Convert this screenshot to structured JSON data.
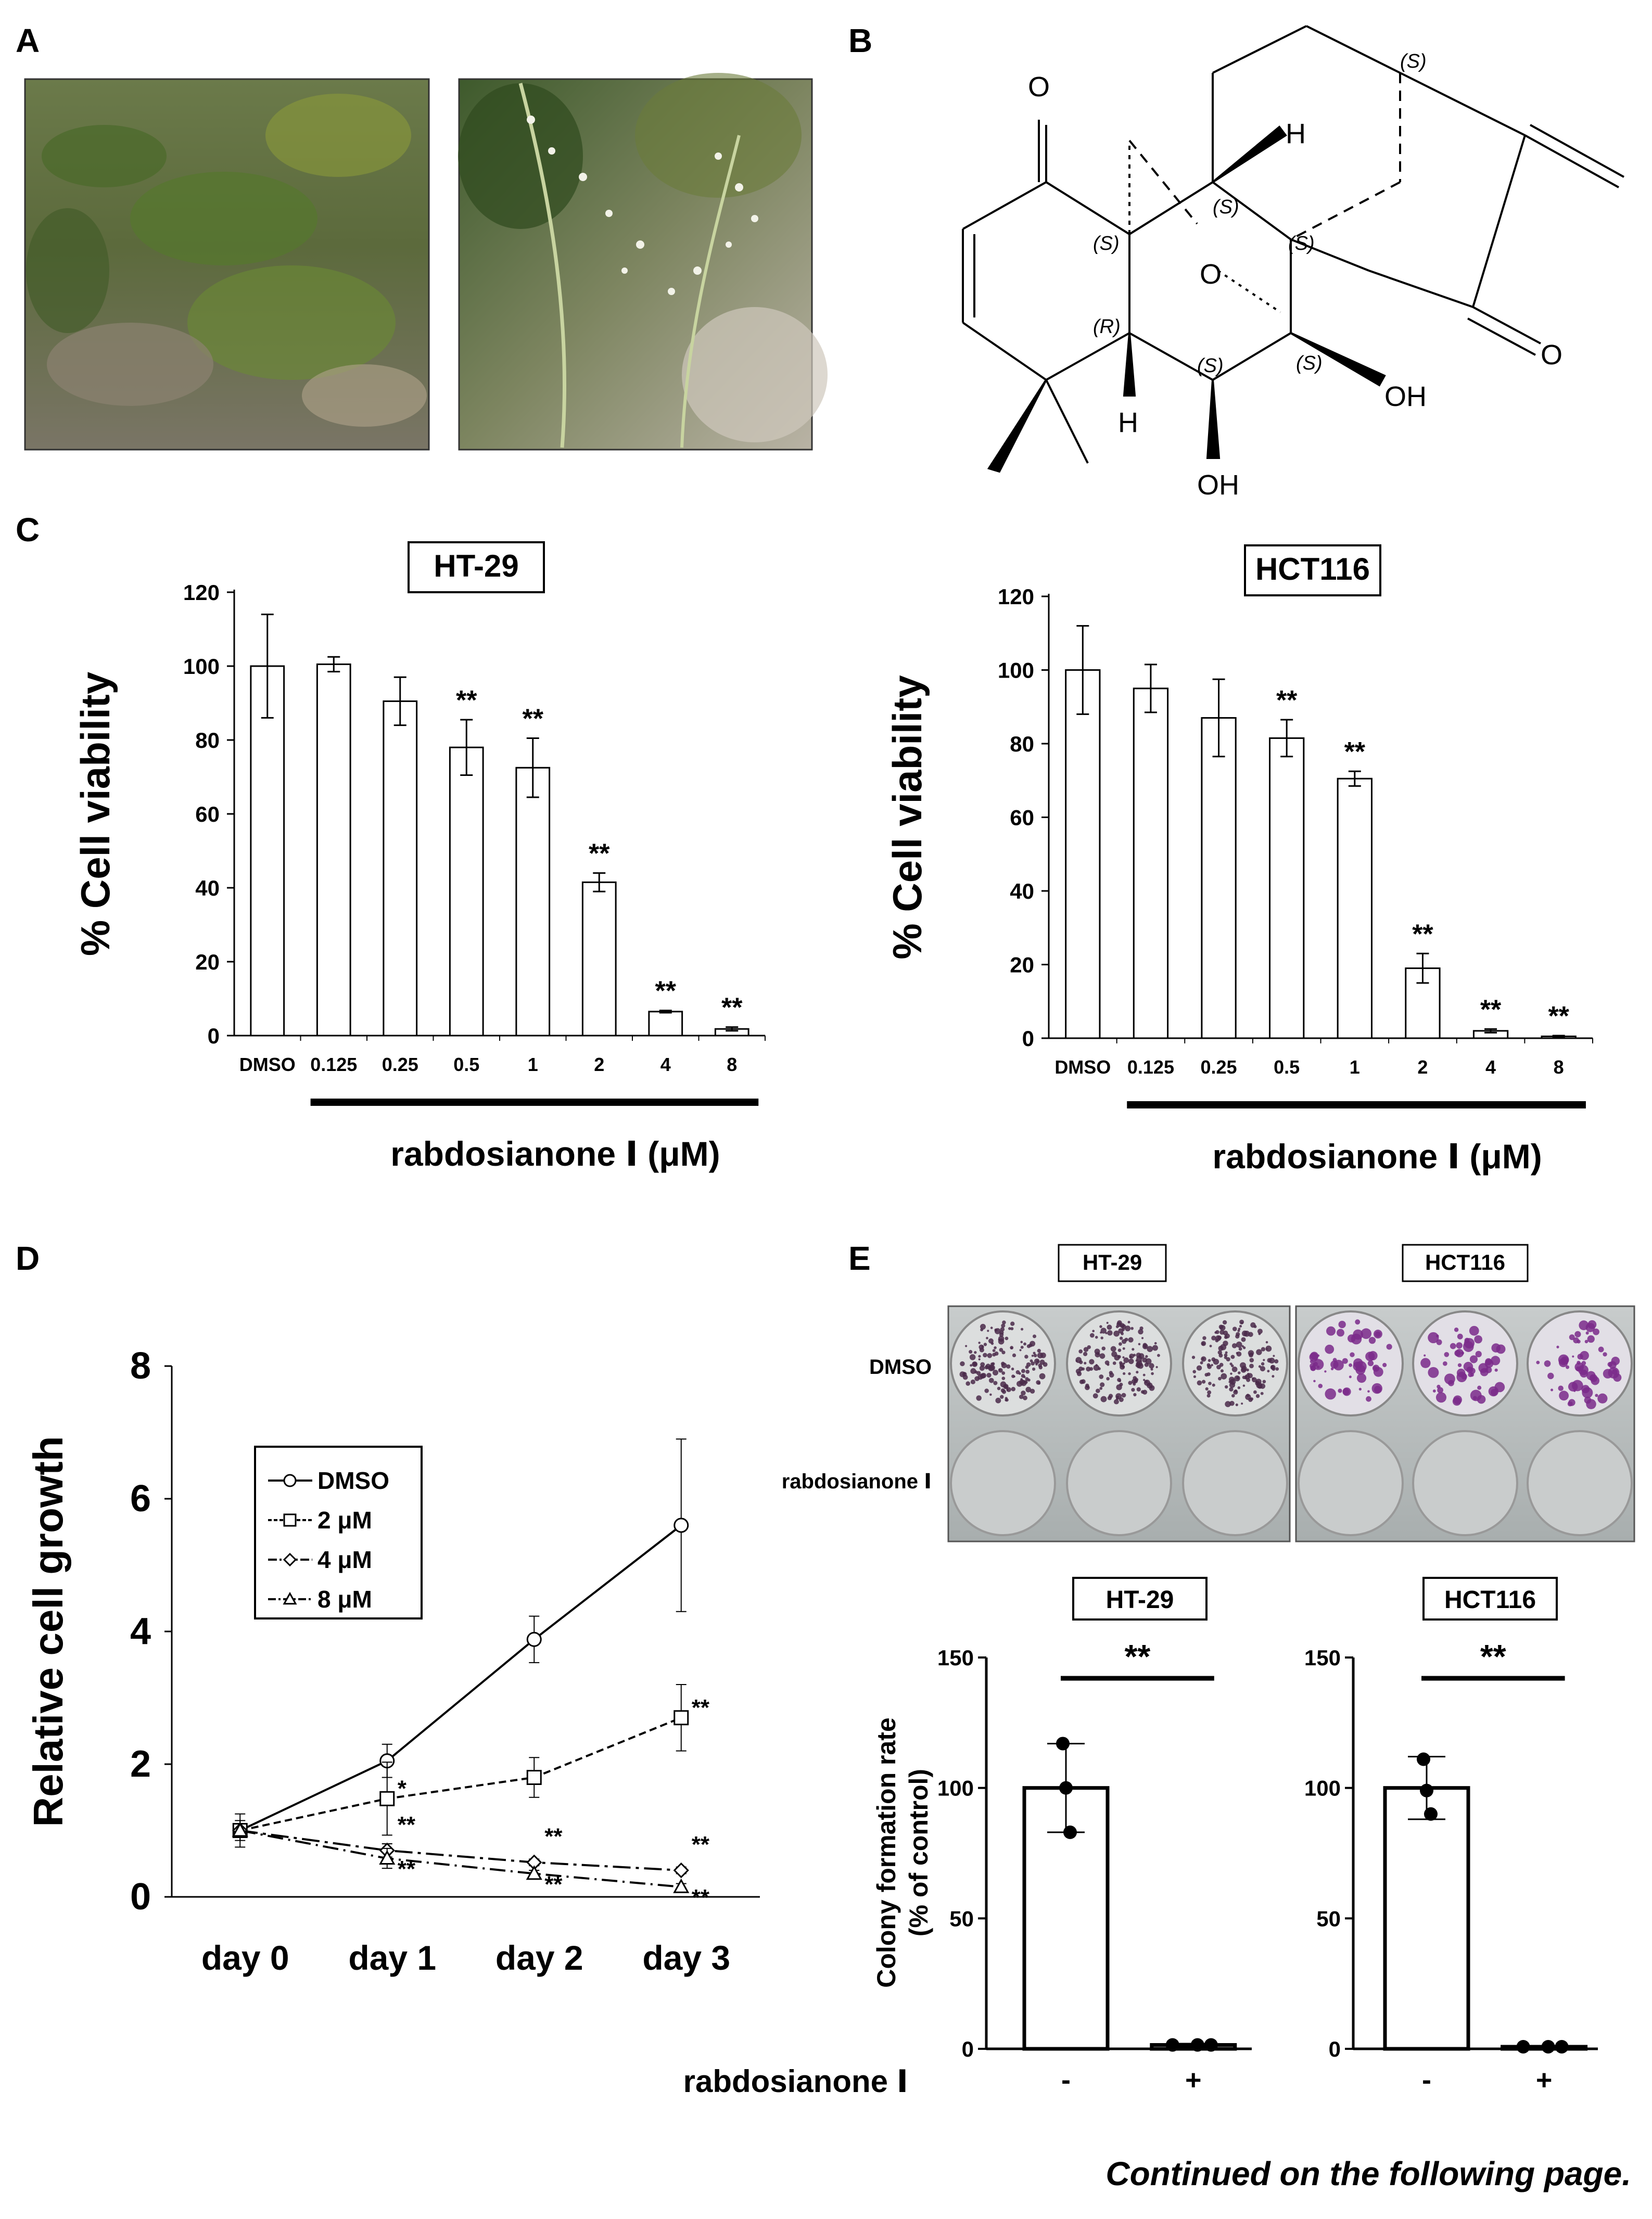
{
  "panels": {
    "A": {
      "letter": "A"
    },
    "B": {
      "letter": "B",
      "atoms": {
        "o_ketone": "O",
        "o_ketone2": "O",
        "o_bridge": "O",
        "h_top": "H",
        "h_bottom": "H",
        "oh_right": "OH",
        "oh_bottom": "OH"
      },
      "stereo": [
        "(S)",
        "(S)",
        "(S)",
        "(S)",
        "(R)",
        "(S)",
        "(S)"
      ]
    },
    "C": {
      "letter": "C",
      "ylabel": "% Cell viability",
      "xlabel": "rabdosianone Ⅰ (μM)",
      "charts": [
        "HT-29",
        "HCT116"
      ]
    },
    "D": {
      "letter": "D",
      "ylabel": "Relative cell growth"
    },
    "E": {
      "letter": "E",
      "photo_titles": [
        "HT-29",
        "HCT116"
      ],
      "row_labels": [
        "DMSO",
        "rabdosianone Ⅰ"
      ],
      "ylabel_line1": "Colony formation rate",
      "ylabel_line2": "(% of control)",
      "treatment_label": "rabdosianone Ⅰ",
      "treatment_ticks": [
        "-",
        "+"
      ]
    }
  },
  "footer": "Continued on the following page.",
  "colors": {
    "bar_fill": "#ffffff",
    "stroke": "#000000",
    "stain": "#7a2a8a"
  },
  "chart_data": [
    {
      "id": "C-HT29",
      "type": "bar",
      "title": "HT-29",
      "categories": [
        "DMSO",
        "0.125",
        "0.25",
        "0.5",
        "1",
        "2",
        "4",
        "8"
      ],
      "values": [
        100,
        100.5,
        90.5,
        78,
        72.5,
        41.5,
        6.5,
        1.8
      ],
      "errors": [
        14,
        2,
        6.5,
        7.5,
        8,
        2.5,
        0.3,
        0.5
      ],
      "significance": [
        "",
        "",
        "",
        "**",
        "**",
        "**",
        "**",
        "**"
      ],
      "yticks": [
        "0",
        "20",
        "40",
        "60",
        "80",
        "100",
        "120"
      ],
      "ylim": [
        0,
        120
      ],
      "ylabel": "% Cell viability",
      "xlabel": "rabdosianone Ⅰ (μM)"
    },
    {
      "id": "C-HCT116",
      "type": "bar",
      "title": "HCT116",
      "categories": [
        "DMSO",
        "0.125",
        "0.25",
        "0.5",
        "1",
        "2",
        "4",
        "8"
      ],
      "values": [
        100,
        95,
        87,
        81.5,
        70.5,
        19,
        2,
        0.5
      ],
      "errors": [
        12,
        6.5,
        10.5,
        5,
        2,
        4,
        0.5,
        0.2
      ],
      "significance": [
        "",
        "",
        "",
        "**",
        "**",
        "**",
        "**",
        "**"
      ],
      "yticks": [
        "0",
        "20",
        "40",
        "60",
        "80",
        "100",
        "120"
      ],
      "ylim": [
        0,
        120
      ],
      "ylabel": "% Cell viability",
      "xlabel": "rabdosianone Ⅰ (μM)"
    },
    {
      "id": "D",
      "type": "line",
      "categories": [
        "day 0",
        "day 1",
        "day 2",
        "day 3"
      ],
      "yticks": [
        "0",
        "2",
        "4",
        "6",
        "8"
      ],
      "ylim": [
        0,
        8
      ],
      "ylabel": "Relative cell growth",
      "series": [
        {
          "name": "DMSO",
          "marker": "circle",
          "dash": "",
          "values": [
            1,
            2.05,
            3.88,
            5.6
          ],
          "errors": [
            0.25,
            0.25,
            0.35,
            1.3
          ],
          "significance": [
            "",
            "",
            "",
            ""
          ]
        },
        {
          "name": "2 μM",
          "marker": "square",
          "dash": "14 8",
          "values": [
            1,
            1.48,
            1.8,
            2.7
          ],
          "errors": [
            0.15,
            0.55,
            0.3,
            0.5
          ],
          "significance": [
            "",
            "*",
            "",
            "**"
          ]
        },
        {
          "name": "4 μM",
          "marker": "diamond",
          "dash": "34 10 6 10",
          "values": [
            1,
            0.7,
            0.52,
            0.4
          ],
          "errors": [
            0.1,
            0.1,
            0.05,
            0.05
          ],
          "significance": [
            "",
            "**",
            "**",
            "**"
          ]
        },
        {
          "name": "8 μM",
          "marker": "triangle",
          "dash": "30 10 4 10",
          "values": [
            1,
            0.58,
            0.35,
            0.15
          ],
          "errors": [
            0.1,
            0.15,
            0.05,
            0.05
          ],
          "significance": [
            "",
            "**",
            "**",
            "**"
          ]
        }
      ]
    },
    {
      "id": "E-HT29",
      "type": "bar",
      "title": "HT-29",
      "categories": [
        "-",
        "+"
      ],
      "values": [
        100,
        1.5
      ],
      "errors": [
        17,
        0.5
      ],
      "points": [
        [
          117,
          83,
          100
        ],
        [
          1.5,
          1.5,
          1.5
        ]
      ],
      "significance": "**",
      "yticks": [
        "0",
        "50",
        "100",
        "150"
      ],
      "ylim": [
        0,
        150
      ]
    },
    {
      "id": "E-HCT116",
      "type": "bar",
      "title": "HCT116",
      "categories": [
        "-",
        "+"
      ],
      "values": [
        100,
        0.8
      ],
      "errors": [
        12,
        0.3
      ],
      "points": [
        [
          111,
          90,
          99
        ],
        [
          0.8,
          0.8,
          0.8
        ]
      ],
      "significance": "**",
      "yticks": [
        "0",
        "50",
        "100",
        "150"
      ],
      "ylim": [
        0,
        150
      ]
    }
  ]
}
